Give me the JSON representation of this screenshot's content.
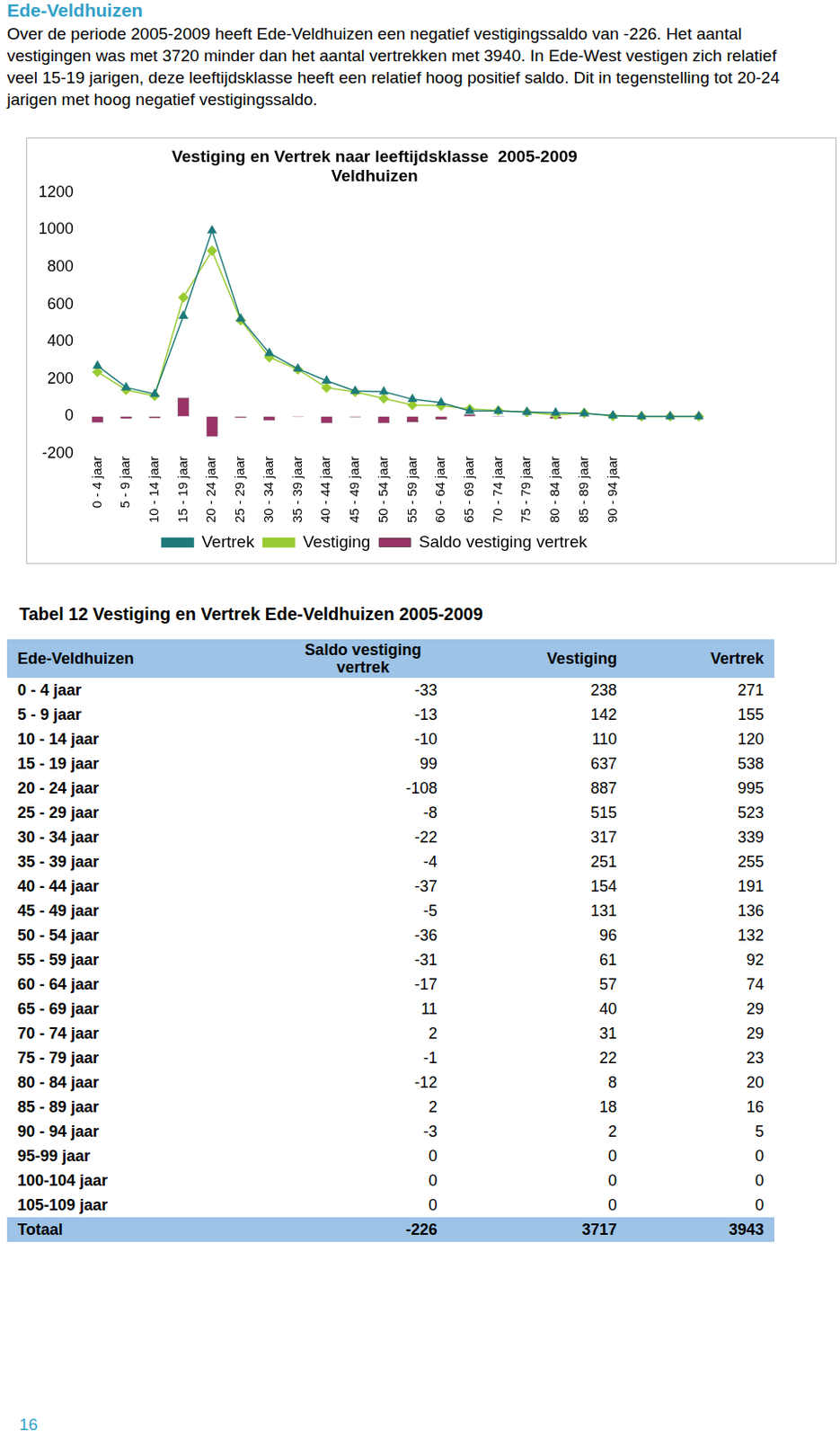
{
  "heading": "Ede-Veldhuizen",
  "paragraph": "Over de periode 2005-2009 heeft Ede-Veldhuizen een negatief vestigingssaldo van -226. Het aantal vestigingen was met 3720 minder dan het aantal vertrekken met 3940. In Ede-West vestigen zich relatief veel 15-19 jarigen, deze leeftijdsklasse heeft een relatief hoog positief saldo. Dit in tegenstelling tot 20-24 jarigen met hoog negatief vestigingssaldo.",
  "chart_data": {
    "type": "bar",
    "title": [
      "Vestiging en Vertrek naar leeftijdsklasse  2005-2009",
      "Veldhuizen"
    ],
    "categories": [
      "0 - 4 jaar",
      "5 - 9 jaar",
      "10 - 14 jaar",
      "15 - 19 jaar",
      "20 - 24 jaar",
      "25 - 29 jaar",
      "30 - 34 jaar",
      "35 - 39 jaar",
      "40 - 44 jaar",
      "45 - 49 jaar",
      "50 - 54 jaar",
      "55 - 59 jaar",
      "60 - 64 jaar",
      "65 - 69 jaar",
      "70 - 74 jaar",
      "75 - 79 jaar",
      "80 - 84 jaar",
      "85 - 89 jaar",
      "90 - 94 jaar",
      null,
      null,
      null
    ],
    "series": [
      {
        "name": "Saldo vestiging vertrek",
        "type": "bar",
        "color": "#993366",
        "values": [
          -33,
          -13,
          -10,
          99,
          -108,
          -8,
          -22,
          -4,
          -37,
          -5,
          -36,
          -31,
          -17,
          11,
          2,
          -1,
          -12,
          2,
          -3,
          0,
          0,
          0
        ]
      },
      {
        "name": "Vertrek",
        "type": "line",
        "color": "#1f7a7a",
        "marker": "triangle",
        "values": [
          271,
          155,
          120,
          538,
          995,
          523,
          339,
          255,
          191,
          136,
          132,
          92,
          74,
          29,
          29,
          23,
          20,
          16,
          5,
          0,
          0,
          0
        ]
      },
      {
        "name": "Vestiging",
        "type": "line",
        "color": "#99cc33",
        "marker": "diamond",
        "values": [
          238,
          142,
          110,
          637,
          887,
          515,
          317,
          251,
          154,
          131,
          96,
          61,
          57,
          40,
          31,
          22,
          8,
          18,
          2,
          0,
          0,
          0
        ]
      }
    ],
    "ylim": [
      -200,
      1200
    ],
    "yticks": [
      -200,
      0,
      200,
      400,
      600,
      800,
      1000,
      1200
    ],
    "grid": false,
    "legend": "bottom"
  },
  "table": {
    "caption": "Tabel 12 Vestiging en Vertrek Ede-Veldhuizen 2005-2009",
    "columns": [
      "Ede-Veldhuizen",
      "Saldo vestiging vertrek",
      "Vestiging",
      "Vertrek"
    ],
    "rows": [
      [
        "0 - 4 jaar",
        -33,
        238,
        271
      ],
      [
        "5 - 9 jaar",
        -13,
        142,
        155
      ],
      [
        "10 - 14 jaar",
        -10,
        110,
        120
      ],
      [
        "15 - 19 jaar",
        99,
        637,
        538
      ],
      [
        "20 - 24 jaar",
        -108,
        887,
        995
      ],
      [
        "25 - 29 jaar",
        -8,
        515,
        523
      ],
      [
        "30 - 34 jaar",
        -22,
        317,
        339
      ],
      [
        "35 - 39 jaar",
        -4,
        251,
        255
      ],
      [
        "40 - 44 jaar",
        -37,
        154,
        191
      ],
      [
        "45 - 49 jaar",
        -5,
        131,
        136
      ],
      [
        "50 - 54 jaar",
        -36,
        96,
        132
      ],
      [
        "55 - 59 jaar",
        -31,
        61,
        92
      ],
      [
        "60 - 64 jaar",
        -17,
        57,
        74
      ],
      [
        "65 - 69 jaar",
        11,
        40,
        29
      ],
      [
        "70 - 74 jaar",
        2,
        31,
        29
      ],
      [
        "75 - 79 jaar",
        -1,
        22,
        23
      ],
      [
        "80 - 84 jaar",
        -12,
        8,
        20
      ],
      [
        "85 - 89 jaar",
        2,
        18,
        16
      ],
      [
        "90 - 94 jaar",
        -3,
        2,
        5
      ],
      [
        "95-99 jaar",
        0,
        0,
        0
      ],
      [
        "100-104 jaar",
        0,
        0,
        0
      ],
      [
        "105-109 jaar",
        0,
        0,
        0
      ]
    ],
    "total": [
      "Totaal",
      -226,
      3717,
      3943
    ]
  },
  "page_number": "16"
}
